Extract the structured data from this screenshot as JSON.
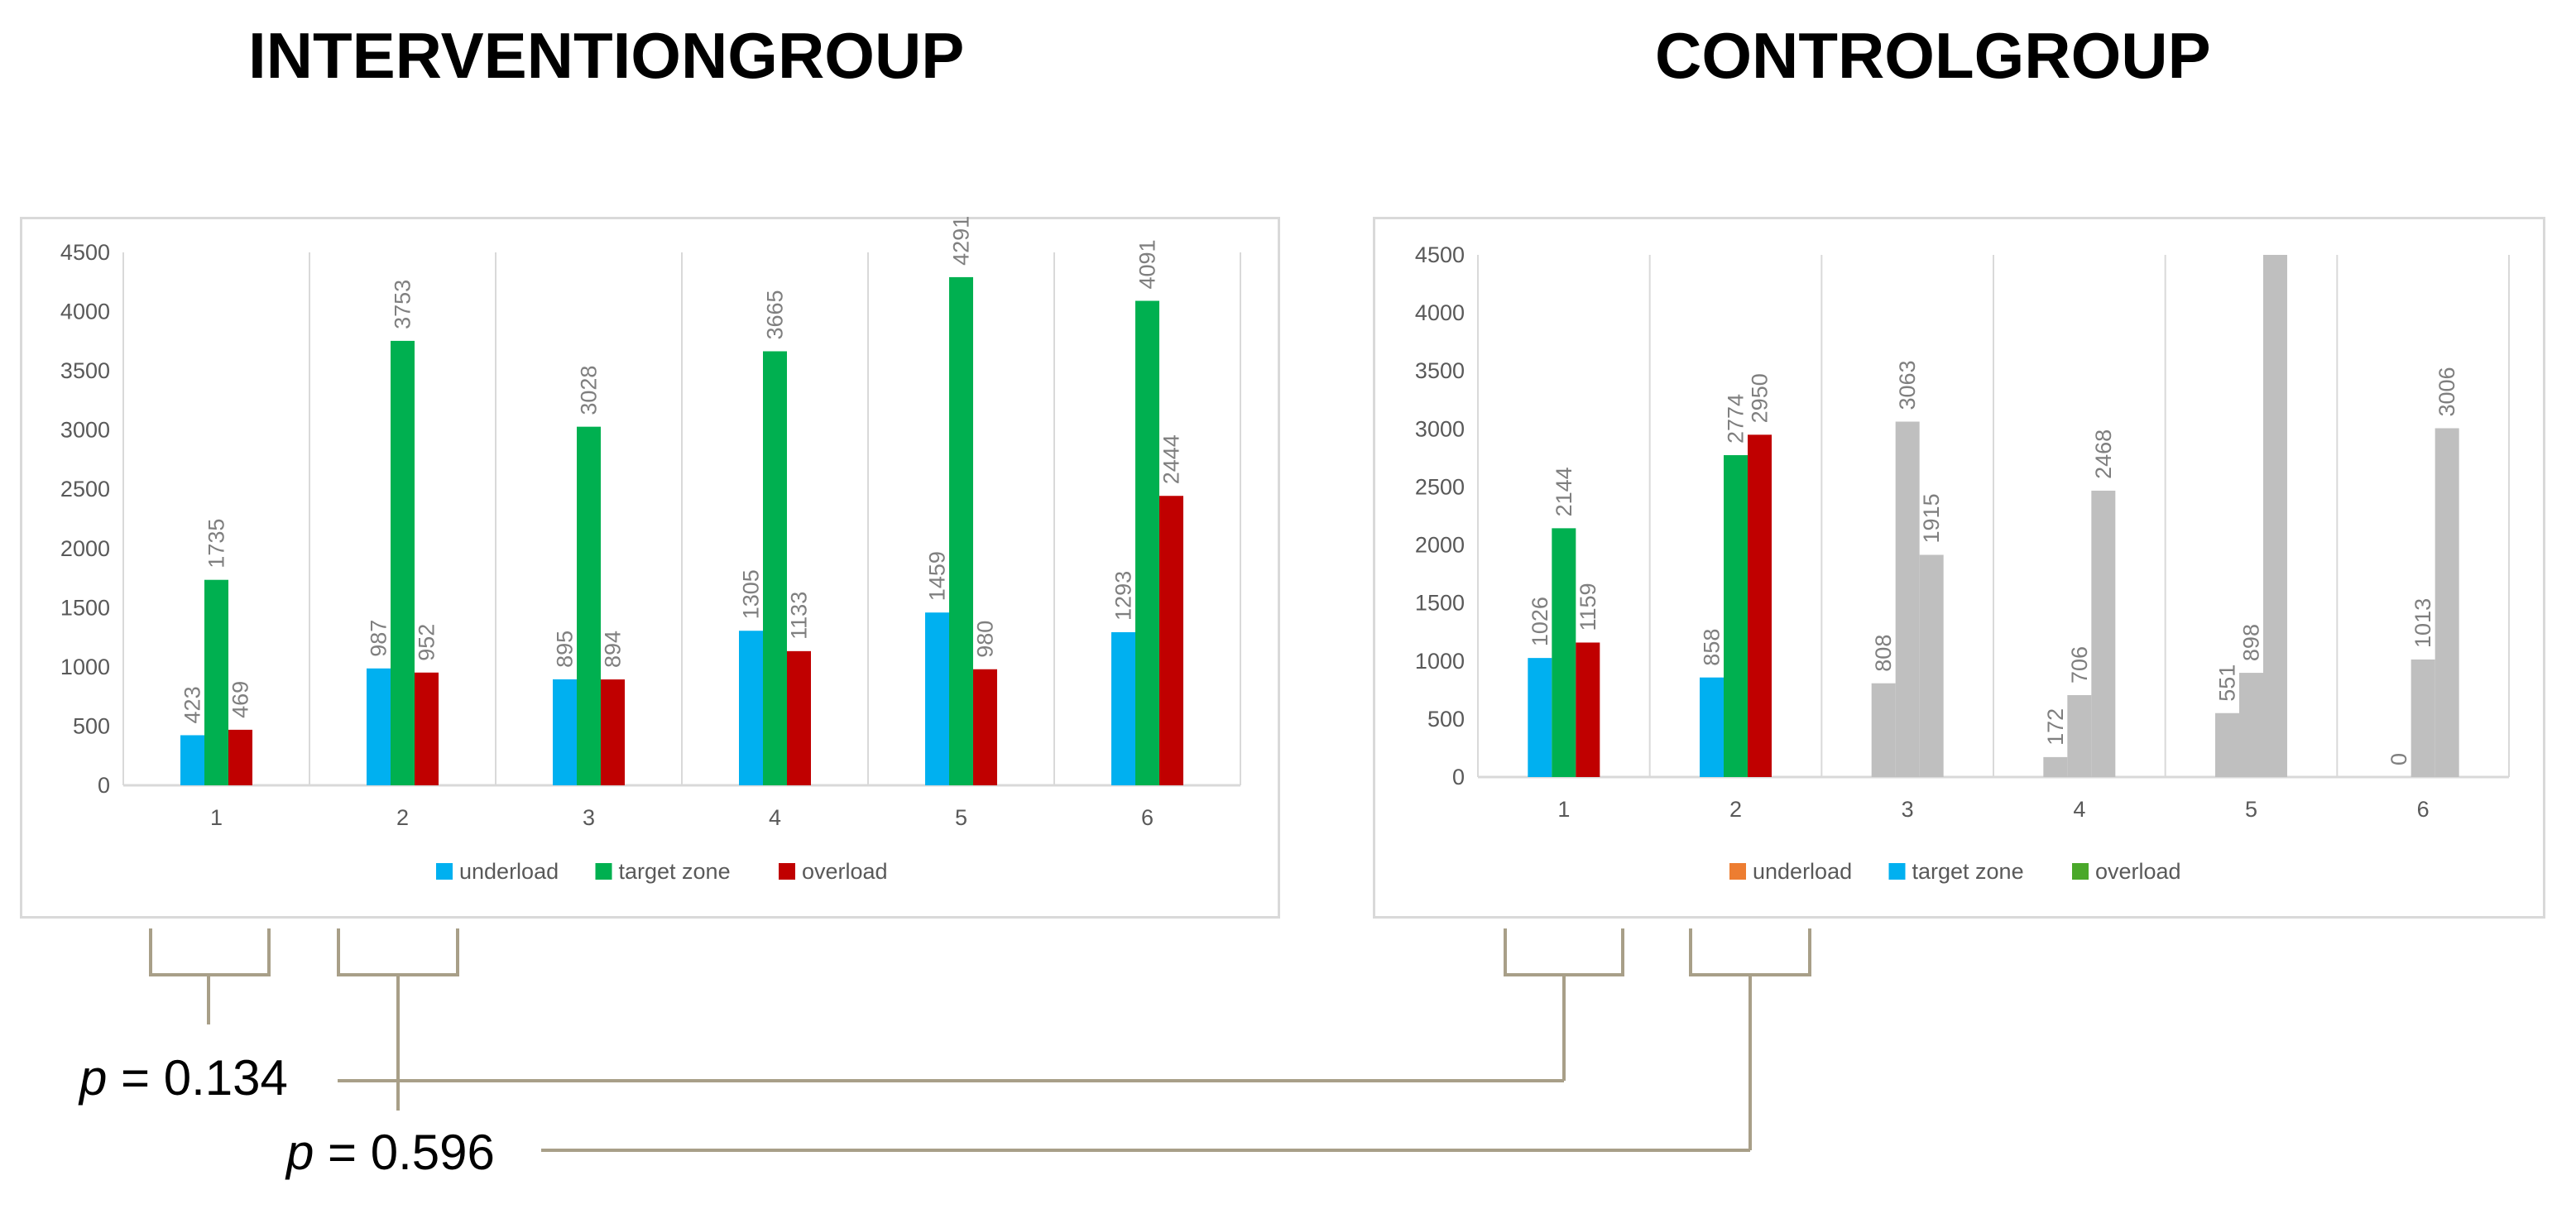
{
  "titles": {
    "left": "INTERVENTIONGROUP",
    "right": "CONTROLGROUP"
  },
  "stats": [
    {
      "p_symbol": "p",
      "text": "= 0.134"
    },
    {
      "p_symbol": "p",
      "text": "= 0.596"
    }
  ],
  "colors": {
    "underload_left": "#00b0f0",
    "target_left": "#00b050",
    "overload_left": "#c00000",
    "legend_underload_right": "#ed7d31",
    "legend_target_right": "#00b0f0",
    "legend_overload_right": "#4aa82a",
    "gray": "#bfbfbf",
    "bracket": "#a89f88"
  },
  "chart_data": [
    {
      "type": "bar",
      "categories": [
        "1",
        "2",
        "3",
        "4",
        "5",
        "6"
      ],
      "ylim": [
        0,
        4500
      ],
      "yticks": [
        "0",
        "500",
        "1000",
        "1500",
        "2000",
        "2500",
        "3000",
        "3500",
        "4000",
        "4500"
      ],
      "grid": "vertical category separators",
      "legend_position": "bottom",
      "series": [
        {
          "name": "underload",
          "values": [
            423,
            987,
            895,
            1305,
            1459,
            1293
          ]
        },
        {
          "name": "target zone",
          "values": [
            1735,
            3753,
            3028,
            3665,
            4291,
            4091
          ]
        },
        {
          "name": "overload",
          "values": [
            469,
            952,
            894,
            1133,
            980,
            2444
          ]
        }
      ]
    },
    {
      "type": "bar",
      "categories": [
        "1",
        "2",
        "3",
        "4",
        "5",
        "6"
      ],
      "ylim": [
        0,
        4500
      ],
      "yticks": [
        "0",
        "500",
        "1000",
        "1500",
        "2000",
        "2500",
        "3000",
        "3500",
        "4000",
        "4500"
      ],
      "grid": "vertical category separators",
      "legend_position": "bottom",
      "series": [
        {
          "name": "underload",
          "values": [
            1026,
            858,
            808,
            172,
            551,
            0
          ]
        },
        {
          "name": "target zone",
          "values": [
            2144,
            2774,
            3063,
            706,
            898,
            1013
          ]
        },
        {
          "name": "overload",
          "values": [
            1159,
            2950,
            1915,
            2468,
            4500,
            3006
          ]
        }
      ],
      "data_labels": [
        [
          "1026",
          "2144",
          "1159"
        ],
        [
          "858",
          "2774",
          "2950"
        ],
        [
          "808",
          "3063",
          "1915"
        ],
        [
          "172",
          "706",
          "2468"
        ],
        [
          "551",
          "898",
          ""
        ],
        [
          "0",
          "1013",
          "3006"
        ]
      ],
      "bar_fill": [
        [
          "#00b0f0",
          "#00b050",
          "#c00000"
        ],
        [
          "#00b0f0",
          "#00b050",
          "#c00000"
        ],
        [
          "#bfbfbf",
          "#bfbfbf",
          "#bfbfbf"
        ],
        [
          "#bfbfbf",
          "#bfbfbf",
          "#bfbfbf"
        ],
        [
          "#bfbfbf",
          "#bfbfbf",
          "#bfbfbf"
        ],
        [
          "#bfbfbf",
          "#bfbfbf",
          "#bfbfbf"
        ]
      ]
    }
  ]
}
